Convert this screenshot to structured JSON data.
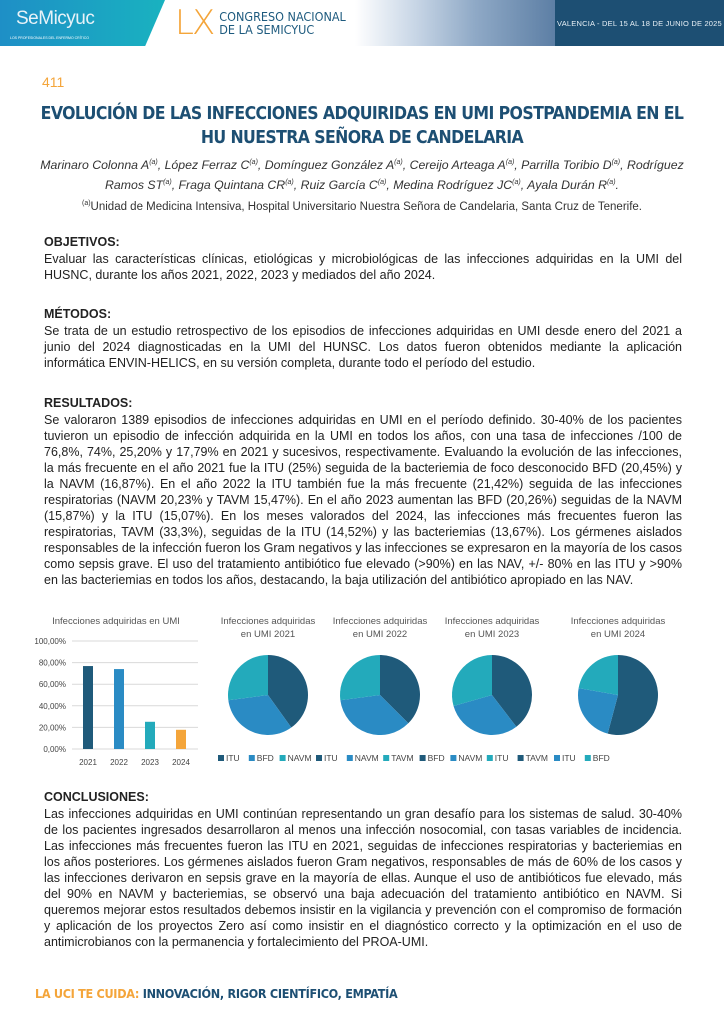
{
  "header": {
    "logo_text": "SeMicyuc",
    "logo_sub": "LOS PROFESIONALES DEL ENFERMO CRÍTICO",
    "lx": "LX",
    "congress_line1": "CONGRESO NACIONAL",
    "congress_line2": "DE LA SEMICYUC",
    "dates": "VALENCIA - DEL 15 AL 18 DE JUNIO DE 2025"
  },
  "abstract_number": "411",
  "title": "EVOLUCIÓN DE LAS INFECCIONES ADQUIRIDAS EN UMI POSTPANDEMIA EN EL HU NUESTRA SEÑORA DE CANDELARIA",
  "authors": [
    "Marinaro Colonna A",
    "López Ferraz C",
    "Domínguez González A",
    "Cereijo Arteaga A",
    "Parrilla Toribio D",
    "Rodríguez Ramos ST",
    "Fraga Quintana CR",
    "Ruiz García C",
    "Medina Rodríguez JC",
    "Ayala Durán R"
  ],
  "affiliation_mark": "(a)",
  "affiliation": "Unidad de Medicina Intensiva, Hospital Universitario Nuestra Señora de Candelaria, Santa Cruz de Tenerife.",
  "sections": {
    "objetivos_h": "OBJETIVOS:",
    "objetivos": "Evaluar las características clínicas, etiológicas y microbiológicas de las infecciones adquiridas en la UMI del HUSNC, durante los años 2021, 2022, 2023 y mediados del año 2024.",
    "metodos_h": "MÉTODOS:",
    "metodos": "Se trata de un estudio retrospectivo de los episodios de infecciones adquiridas en UMI desde enero del 2021 a junio del 2024 diagnosticadas en la UMI del HUNSC. Los datos fueron obtenidos mediante la aplicación informática ENVIN-HELICS, en su versión completa, durante todo el período del estudio.",
    "resultados_h": "RESULTADOS:",
    "resultados": "Se valoraron 1389 episodios de infecciones adquiridas en UMI en el período definido. 30-40% de los pacientes tuvieron un episodio de infección adquirida en la UMI en todos los años, con una tasa de infecciones /100 de 76,8%, 74%, 25,20% y 17,79% en 2021 y sucesivos, respectivamente. Evaluando la evolución de las infecciones, la más frecuente en el año 2021 fue la ITU (25%) seguida de la bacteriemia de foco desconocido BFD (20,45%) y la NAVM (16,87%). En el año 2022 la ITU también fue la más frecuente (21,42%) seguida de las infecciones respiratorias (NAVM 20,23% y TAVM 15,47%). En el año 2023 aumentan las BFD (20,26%) seguidas de la NAVM (15,87%) y la ITU (15,07%). En los meses valorados del 2024, las infecciones más frecuentes fueron las respiratorias, TAVM (33,3%), seguidas de la ITU (14,52%) y las bacteriemias (13,67%). Los gérmenes aislados responsables de la infección fueron los Gram negativos y las infecciones se expresaron en la mayoría de los casos como sepsis grave. El uso del tratamiento antibiótico fue elevado (>90%) en las NAV, +/- 80% en las ITU y >90% en las bacteriemias en todos los años, destacando, la baja utilización del antibiótico apropiado en las NAV.",
    "conclusiones_h": "CONCLUSIONES:",
    "conclusiones": "Las infecciones adquiridas en UMI continúan representando un gran desafío para los sistemas de salud. 30-40% de los pacientes ingresados desarrollaron al menos una infección nosocomial, con tasas variables de incidencia. Las infecciones más frecuentes fueron las ITU en 2021, seguidas de infecciones respiratorias y bacteriemias en los años posteriores. Los gérmenes aislados fueron Gram negativos, responsables de más de 60% de los casos y las infecciones derivaron en sepsis grave en la mayoría de ellas. Aunque el uso de antibióticos fue elevado, más del 90% en NAVM y bacteriemias, se observó una baja adecuación del tratamiento antibiótico en NAVM. Si queremos mejorar estos resultados debemos insistir en la vigilancia y prevención con el compromiso de formación y aplicación de los proyectos Zero así como insistir en el diagnóstico correcto y la optimización en el uso de antimicrobianos con la permanencia y fortalecimiento del PROA-UMI."
  },
  "footer": {
    "lead": "LA UCI TE CUIDA:",
    "rest": "INNOVACIÓN, RIGOR CIENTÍFICO, EMPATÍA"
  },
  "colors": {
    "dark": "#1f5a7a",
    "mid": "#2a8bc4",
    "teal": "#23aabb",
    "orange": "#f4a53a",
    "title": "#1d4f73"
  },
  "chart_data": [
    {
      "type": "bar",
      "title": "Infecciones adquiridas en UMI",
      "categories": [
        "2021",
        "2022",
        "2023",
        "2024"
      ],
      "values": [
        76.8,
        74,
        25.2,
        17.79
      ],
      "ylim": [
        0,
        100
      ],
      "yticks": [
        "0,00%",
        "20,00%",
        "40,00%",
        "60,00%",
        "80,00%",
        "100,00%"
      ],
      "grid": true,
      "bar_colors": [
        "#1f5a7a",
        "#2a8bc4",
        "#23aabb",
        "#f4a53a"
      ]
    },
    {
      "type": "pie",
      "title": [
        "Infecciones adquiridas",
        "en UMI 2021"
      ],
      "labels": [
        "ITU",
        "BFD",
        "NAVM"
      ],
      "values": [
        25,
        20.45,
        16.87
      ],
      "legend": "bottom"
    },
    {
      "type": "pie",
      "title": [
        "Infecciones adquiridas",
        "en UMI 2022"
      ],
      "labels": [
        "ITU",
        "NAVM",
        "TAVM"
      ],
      "values": [
        21.42,
        20.23,
        15.47
      ],
      "legend": "bottom"
    },
    {
      "type": "pie",
      "title": [
        "Infecciones adquiridas",
        "en UMI 2023"
      ],
      "labels": [
        "BFD",
        "NAVM",
        "ITU"
      ],
      "values": [
        20.26,
        15.87,
        15.07
      ],
      "legend": "bottom"
    },
    {
      "type": "pie",
      "title": [
        "Infecciones adquiridas",
        "en UMI 2024"
      ],
      "labels": [
        "TAVM",
        "ITU",
        "BFD"
      ],
      "values": [
        33.3,
        14.52,
        13.67
      ],
      "legend": "bottom"
    }
  ]
}
